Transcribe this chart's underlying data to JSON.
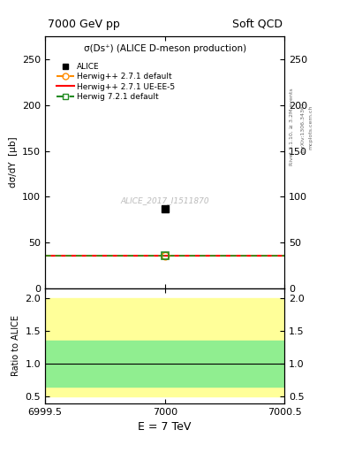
{
  "title_top": "7000 GeV pp",
  "title_right": "Soft QCD",
  "plot_title": "σ(Ds⁺) (ALICE D-meson production)",
  "ylabel_main": "dσ/dY  [μb]",
  "ylabel_ratio": "Ratio to ALICE",
  "xlabel": "E = 7 TeV",
  "watermark": "ALICE_2017_I1511870",
  "rivet_text": "Rivet 3.1.10, ≥ 3.2M events",
  "arxiv_text": "[arXiv:1306.3436]",
  "mcplots_text": "mcplots.cern.ch",
  "xlim": [
    6999.5,
    7000.5
  ],
  "ylim_main": [
    0,
    275
  ],
  "ylim_ratio": [
    0.4,
    2.15
  ],
  "yticks_main": [
    0,
    50,
    100,
    150,
    200,
    250
  ],
  "yticks_ratio": [
    0.5,
    1.0,
    1.5,
    2.0
  ],
  "xticks": [
    6999.5,
    7000.0,
    7000.5
  ],
  "xticklabels": [
    "6999.5",
    "7000",
    "7000.5"
  ],
  "alice_x": 7000.0,
  "alice_y": 87.0,
  "herwig_271_default_x": 7000.0,
  "herwig_271_default_y": 36.0,
  "herwig_271_ueee5_y": 36.0,
  "herwig_721_default_x": 7000.0,
  "herwig_721_default_y": 36.0,
  "alice_color": "#000000",
  "herwig_271_default_color": "#FF8C00",
  "herwig_271_ueee5_color": "#FF0000",
  "herwig_721_default_color": "#228B22",
  "yellow_band_low": 0.5,
  "yellow_band_high": 2.0,
  "green_band_low": 0.65,
  "green_band_high": 1.35,
  "yellow_color": "#FFFF99",
  "green_color": "#90EE90",
  "ratio_line_y": 1.0,
  "bg_color": "#ffffff"
}
